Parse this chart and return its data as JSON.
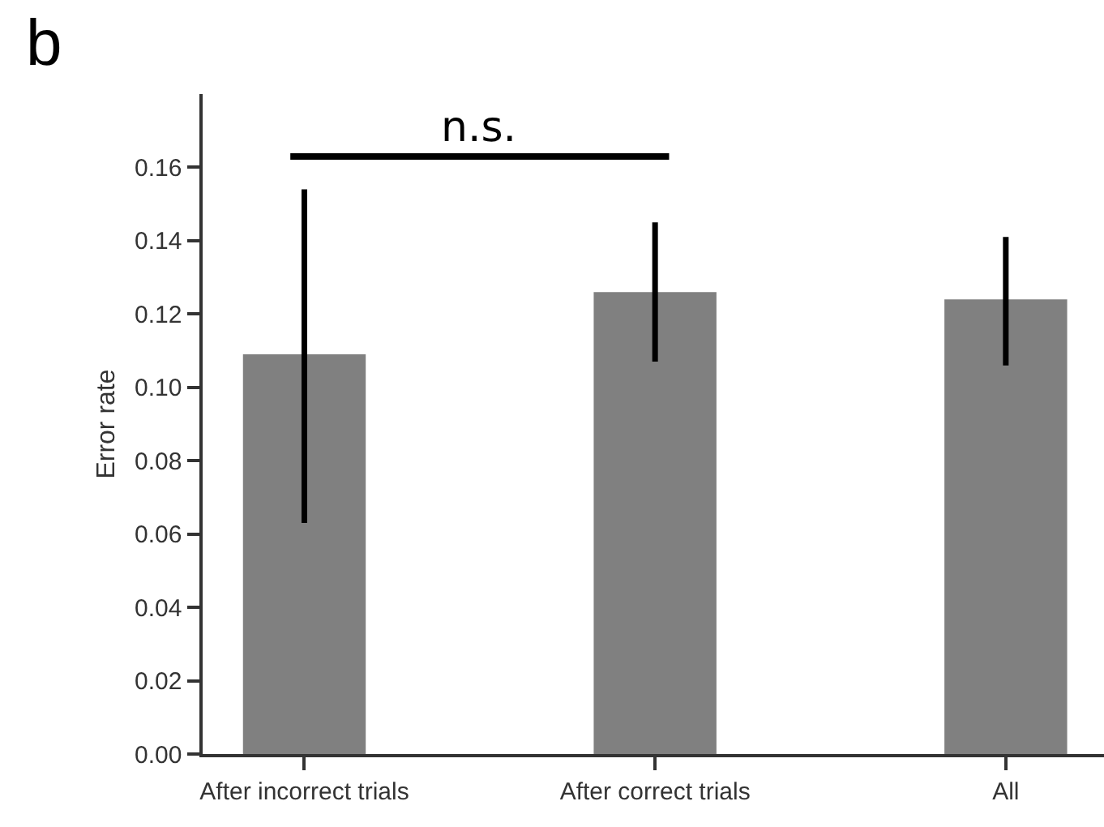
{
  "chart_data": {
    "type": "bar",
    "ylabel": "Error rate",
    "categories": [
      "After incorrect trials",
      "After correct trials",
      "All"
    ],
    "values": [
      0.109,
      0.126,
      0.124
    ],
    "errors": [
      [
        0.063,
        0.154
      ],
      [
        0.107,
        0.145
      ],
      [
        0.106,
        0.141
      ]
    ],
    "color": "#808080",
    "ylim": [
      0,
      0.18
    ],
    "yticks": [
      {
        "value": 0,
        "label": "0.00"
      },
      {
        "value": 0.02,
        "label": "0.02"
      },
      {
        "value": 0.04,
        "label": "0.04"
      },
      {
        "value": 0.06,
        "label": "0.06"
      },
      {
        "value": 0.08,
        "label": "0.08"
      },
      {
        "value": 0.1,
        "label": "0.10"
      },
      {
        "value": 0.12,
        "label": "0.12"
      },
      {
        "value": 0.14,
        "label": "0.14"
      },
      {
        "value": 0.16,
        "label": "0.16"
      }
    ],
    "annotations": [
      "b",
      "n.s."
    ],
    "legend": false
  }
}
